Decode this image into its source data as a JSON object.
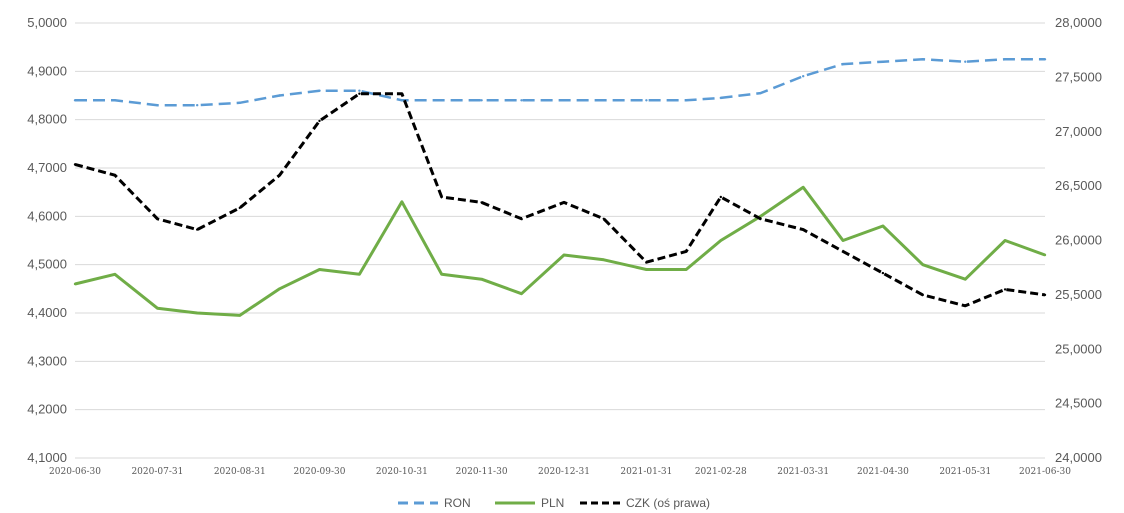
{
  "chart_data": {
    "type": "line",
    "x": [
      "2020-06-30",
      "2020-07-15",
      "2020-07-31",
      "2020-08-15",
      "2020-08-31",
      "2020-09-15",
      "2020-09-30",
      "2020-10-15",
      "2020-10-31",
      "2020-11-15",
      "2020-11-30",
      "2020-12-15",
      "2020-12-31",
      "2021-01-15",
      "2021-01-31",
      "2021-02-15",
      "2021-02-28",
      "2021-03-15",
      "2021-03-31",
      "2021-04-15",
      "2021-04-30",
      "2021-05-15",
      "2021-05-31",
      "2021-06-15",
      "2021-06-30"
    ],
    "x_tick_labels": [
      "2020-06-30",
      "2020-07-31",
      "2020-08-31",
      "2020-09-30",
      "2020-10-31",
      "2020-11-30",
      "2020-12-31",
      "2021-01-31",
      "2021-02-28",
      "2021-03-31",
      "2021-04-30",
      "2021-05-31",
      "2021-06-30"
    ],
    "y_left_ticks": [
      "4,1000",
      "4,2000",
      "4,3000",
      "4,4000",
      "4,5000",
      "4,6000",
      "4,7000",
      "4,8000",
      "4,9000",
      "5,0000"
    ],
    "y_right_ticks": [
      "24,0000",
      "24,5000",
      "25,0000",
      "25,5000",
      "26,0000",
      "26,5000",
      "27,0000",
      "27,5000",
      "28,0000"
    ],
    "ylim_left": [
      4.1,
      5.0
    ],
    "ylim_right": [
      24.0,
      28.0
    ],
    "grid": true,
    "legend_position": "bottom",
    "series": [
      {
        "name": "RON",
        "axis": "left",
        "color": "#5b9bd5",
        "style": "dashed",
        "values": [
          4.84,
          4.84,
          4.83,
          4.83,
          4.835,
          4.85,
          4.86,
          4.86,
          4.84,
          4.84,
          4.84,
          4.84,
          4.84,
          4.84,
          4.84,
          4.84,
          4.845,
          4.855,
          4.89,
          4.915,
          4.92,
          4.925,
          4.92,
          4.925,
          4.925
        ]
      },
      {
        "name": "PLN",
        "axis": "left",
        "color": "#70ad47",
        "style": "solid",
        "values": [
          4.46,
          4.48,
          4.41,
          4.4,
          4.395,
          4.45,
          4.49,
          4.48,
          4.63,
          4.48,
          4.47,
          4.44,
          4.52,
          4.51,
          4.49,
          4.49,
          4.55,
          4.6,
          4.66,
          4.55,
          4.58,
          4.5,
          4.47,
          4.55,
          4.52
        ]
      },
      {
        "name": "CZK (oś prawa)",
        "axis": "right",
        "color": "#000000",
        "style": "dashed",
        "values": [
          26.7,
          26.6,
          26.2,
          26.1,
          26.3,
          26.6,
          27.1,
          27.35,
          27.35,
          26.4,
          26.35,
          26.2,
          26.35,
          26.2,
          25.8,
          25.9,
          26.4,
          26.2,
          26.1,
          25.9,
          25.7,
          25.5,
          25.4,
          25.55,
          25.5
        ]
      }
    ]
  }
}
